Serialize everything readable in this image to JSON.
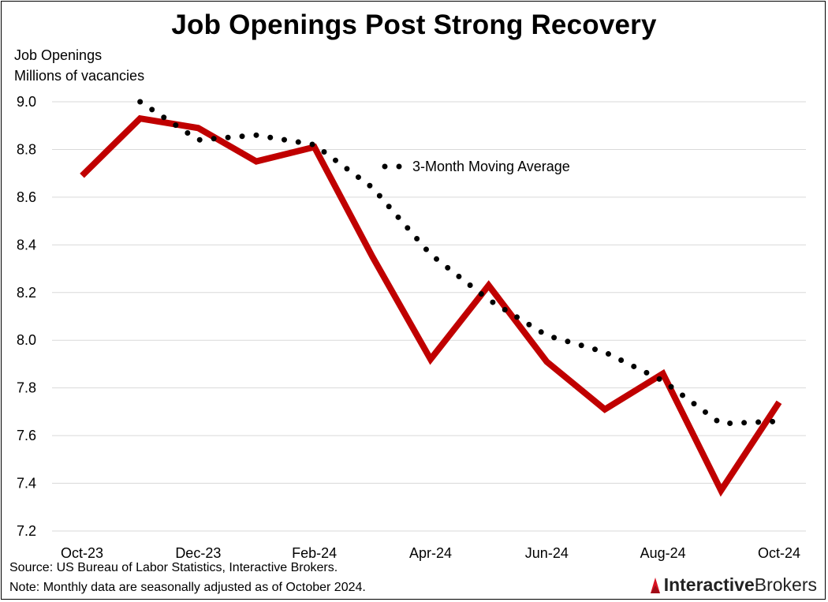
{
  "title": "Job Openings Post Strong Recovery",
  "y_axis_label_line1": "Job Openings",
  "y_axis_label_line2": "Millions of vacancies",
  "legend_label": "3-Month Moving Average",
  "source": "Source: US Bureau of Labor Statistics, Interactive Brokers.",
  "note": "Note: Monthly data are seasonally adjusted as of October 2024.",
  "brand": {
    "part1": "Interactive",
    "part2": "Brokers"
  },
  "colors": {
    "job_openings": "#c00000",
    "moving_average": "#000000",
    "grid": "#d9d9d9"
  },
  "chart_data": {
    "type": "line",
    "x": [
      "Oct-23",
      "Nov-23",
      "Dec-23",
      "Jan-24",
      "Feb-24",
      "Mar-24",
      "Apr-24",
      "May-24",
      "Jun-24",
      "Jul-24",
      "Aug-24",
      "Sep-24",
      "Oct-24"
    ],
    "x_tick_labels": [
      "Oct-23",
      "Dec-23",
      "Feb-24",
      "Apr-24",
      "Jun-24",
      "Aug-24",
      "Oct-24"
    ],
    "ylim": [
      7.2,
      9.0
    ],
    "y_ticks": [
      "7.2",
      "7.4",
      "7.6",
      "7.8",
      "8.0",
      "8.2",
      "8.4",
      "8.6",
      "8.8",
      "9.0"
    ],
    "grid": true,
    "series": [
      {
        "style": "solid",
        "values": [
          8.69,
          8.93,
          8.89,
          8.75,
          8.81,
          8.35,
          7.92,
          8.23,
          7.91,
          7.71,
          7.86,
          7.37,
          7.74
        ]
      },
      {
        "name": "3-Month Moving Average",
        "style": "dotted",
        "values": [
          null,
          9.0,
          8.84,
          8.86,
          8.82,
          8.64,
          8.36,
          8.17,
          8.02,
          7.95,
          7.83,
          7.65,
          7.66
        ]
      }
    ]
  }
}
